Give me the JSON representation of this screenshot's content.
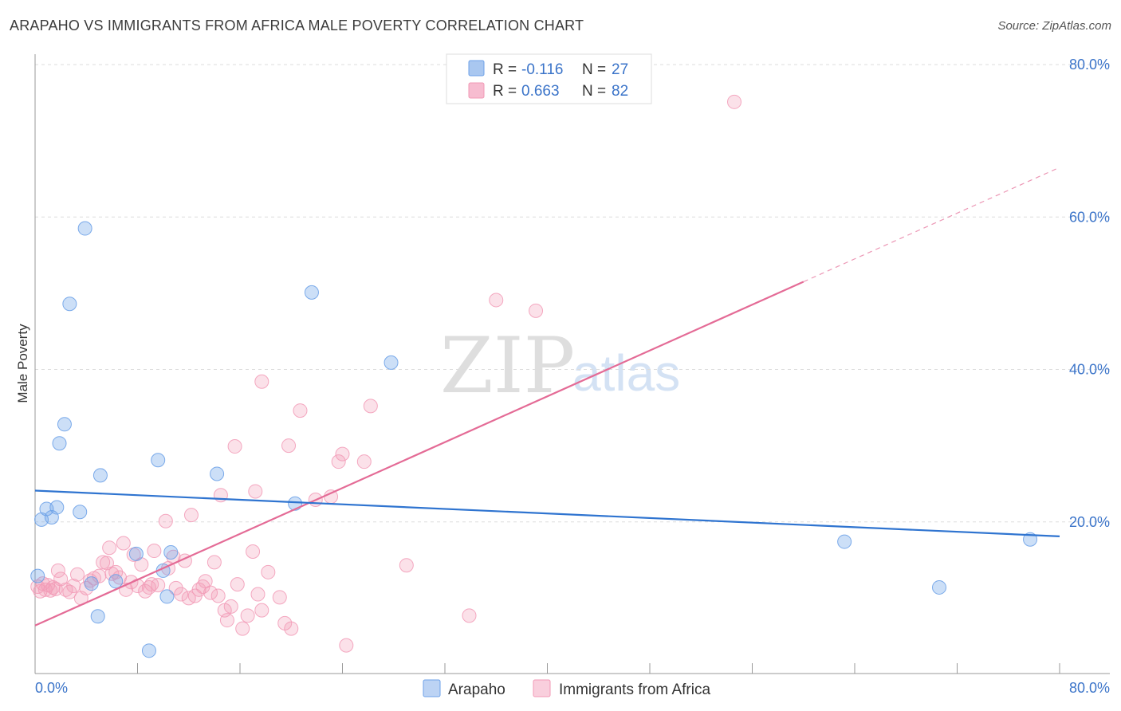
{
  "header": {
    "title": "ARAPAHO VS IMMIGRANTS FROM AFRICA MALE POVERTY CORRELATION CHART",
    "source": "Source: ZipAtlas.com"
  },
  "watermark": {
    "zip": "ZIP",
    "atlas": "atlas"
  },
  "legend": {
    "rows": [
      {
        "r_label": "R =",
        "r_value": "-0.116",
        "n_label": "N =",
        "n_value": "27",
        "color": "#a9c7f0"
      },
      {
        "r_label": "R =",
        "r_value": "0.663",
        "n_label": "N =",
        "n_value": "82",
        "color": "#f7bcd0"
      }
    ]
  },
  "bottom_legend": {
    "series1": "Arapaho",
    "series2": "Immigrants from Africa"
  },
  "chart_data": {
    "type": "scatter",
    "title": "ARAPAHO VS IMMIGRANTS FROM AFRICA MALE POVERTY CORRELATION CHART",
    "xlabel": "",
    "ylabel": "Male Poverty",
    "xlim": [
      0,
      80
    ],
    "ylim": [
      0,
      80
    ],
    "x_tick_labels": [
      "0.0%",
      "80.0%"
    ],
    "y_ticks": [
      20,
      40,
      60,
      80
    ],
    "y_tick_labels": [
      "20.0%",
      "40.0%",
      "60.0%",
      "80.0%"
    ],
    "grid": true,
    "legend_position": "top-center",
    "colors": {
      "arapaho": "#6ea2e8",
      "africa": "#f29ab6",
      "arapaho_line": "#2f74d0",
      "africa_line": "#e46b96"
    },
    "series": [
      {
        "name": "Arapaho",
        "r": -0.116,
        "n": 27,
        "points": [
          [
            0.2,
            12.8
          ],
          [
            0.5,
            20.2
          ],
          [
            0.9,
            21.6
          ],
          [
            1.3,
            20.5
          ],
          [
            1.7,
            21.8
          ],
          [
            1.9,
            30.2
          ],
          [
            2.3,
            32.7
          ],
          [
            2.7,
            48.5
          ],
          [
            3.5,
            21.2
          ],
          [
            3.9,
            58.4
          ],
          [
            4.4,
            11.8
          ],
          [
            4.9,
            7.5
          ],
          [
            5.1,
            26.0
          ],
          [
            6.3,
            12.1
          ],
          [
            7.9,
            15.7
          ],
          [
            8.9,
            3.0
          ],
          [
            9.6,
            28.0
          ],
          [
            10.0,
            13.5
          ],
          [
            10.3,
            10.1
          ],
          [
            10.6,
            15.9
          ],
          [
            14.2,
            26.2
          ],
          [
            20.3,
            22.3
          ],
          [
            21.6,
            50.0
          ],
          [
            27.8,
            40.8
          ],
          [
            63.2,
            17.3
          ],
          [
            70.6,
            11.3
          ],
          [
            77.7,
            17.6
          ]
        ],
        "trend": {
          "x": [
            0,
            80
          ],
          "y": [
            24.0,
            18.0
          ]
        }
      },
      {
        "name": "Immigrants from Africa",
        "r": 0.663,
        "n": 82,
        "points": [
          [
            0.2,
            11.4
          ],
          [
            0.4,
            10.8
          ],
          [
            0.6,
            11.8
          ],
          [
            0.8,
            11.0
          ],
          [
            1.0,
            11.6
          ],
          [
            1.2,
            10.9
          ],
          [
            1.4,
            11.3
          ],
          [
            1.6,
            11.1
          ],
          [
            1.8,
            13.5
          ],
          [
            2.0,
            12.4
          ],
          [
            2.4,
            11.0
          ],
          [
            2.7,
            10.7
          ],
          [
            3.0,
            11.5
          ],
          [
            3.3,
            13.0
          ],
          [
            3.6,
            9.9
          ],
          [
            4.0,
            11.2
          ],
          [
            4.3,
            12.2
          ],
          [
            4.6,
            12.5
          ],
          [
            5.0,
            12.8
          ],
          [
            5.3,
            14.6
          ],
          [
            5.6,
            14.5
          ],
          [
            5.8,
            16.5
          ],
          [
            6.0,
            13.1
          ],
          [
            6.3,
            13.3
          ],
          [
            6.6,
            12.6
          ],
          [
            6.9,
            17.1
          ],
          [
            7.1,
            11.0
          ],
          [
            7.5,
            12.0
          ],
          [
            7.7,
            15.6
          ],
          [
            8.0,
            11.5
          ],
          [
            8.3,
            14.3
          ],
          [
            8.6,
            10.8
          ],
          [
            8.9,
            11.3
          ],
          [
            9.1,
            11.7
          ],
          [
            9.3,
            16.1
          ],
          [
            9.6,
            11.6
          ],
          [
            10.2,
            20.0
          ],
          [
            10.4,
            13.8
          ],
          [
            10.8,
            15.3
          ],
          [
            11.0,
            11.2
          ],
          [
            11.4,
            10.4
          ],
          [
            11.7,
            14.8
          ],
          [
            12.0,
            9.9
          ],
          [
            12.2,
            20.8
          ],
          [
            12.5,
            10.2
          ],
          [
            12.8,
            11.0
          ],
          [
            13.1,
            11.4
          ],
          [
            13.3,
            12.1
          ],
          [
            13.7,
            10.6
          ],
          [
            14.0,
            14.6
          ],
          [
            14.3,
            10.2
          ],
          [
            14.5,
            23.4
          ],
          [
            14.8,
            8.3
          ],
          [
            15.0,
            7.0
          ],
          [
            15.3,
            8.8
          ],
          [
            15.8,
            11.7
          ],
          [
            15.6,
            29.8
          ],
          [
            16.2,
            5.9
          ],
          [
            16.6,
            7.6
          ],
          [
            17.0,
            16.0
          ],
          [
            17.2,
            23.9
          ],
          [
            17.4,
            10.4
          ],
          [
            17.7,
            8.3
          ],
          [
            17.7,
            38.3
          ],
          [
            18.2,
            13.3
          ],
          [
            19.1,
            10.0
          ],
          [
            19.5,
            6.6
          ],
          [
            19.8,
            29.9
          ],
          [
            20.0,
            5.9
          ],
          [
            20.7,
            34.5
          ],
          [
            21.9,
            22.8
          ],
          [
            23.1,
            23.2
          ],
          [
            23.7,
            27.8
          ],
          [
            24.0,
            28.8
          ],
          [
            24.3,
            3.7
          ],
          [
            25.7,
            27.8
          ],
          [
            26.2,
            35.1
          ],
          [
            29.0,
            14.2
          ],
          [
            33.9,
            7.6
          ],
          [
            36.0,
            49.0
          ],
          [
            39.1,
            47.6
          ],
          [
            54.6,
            75.0
          ]
        ],
        "trend": {
          "x": [
            0,
            60
          ],
          "y": [
            6.3,
            51.4
          ]
        },
        "trend_extension": {
          "x": [
            60,
            80
          ],
          "y": [
            51.4,
            66.4
          ]
        }
      }
    ]
  }
}
